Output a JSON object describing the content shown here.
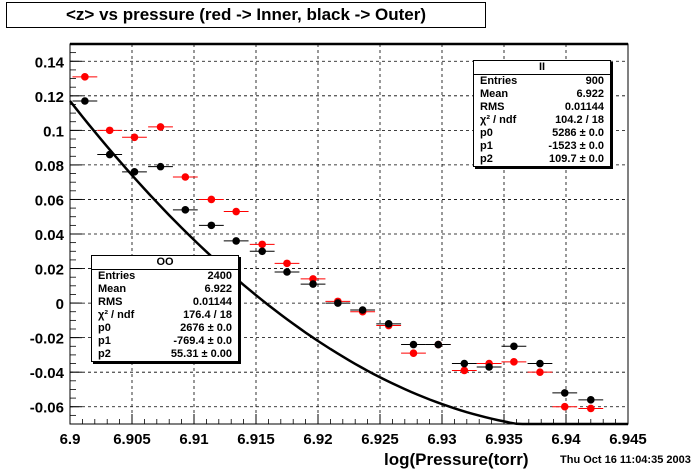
{
  "title": "<z> vs pressure (red -> Inner, black -> Outer)",
  "xlabel": "log(Pressure(torr)",
  "timestamp": "Thu Oct 16 11:04:35 2003",
  "stats_inner": {
    "header": "II",
    "rows": [
      {
        "label": "Entries",
        "value": "900"
      },
      {
        "label": "Mean",
        "value": "6.922"
      },
      {
        "label": "RMS",
        "value": "0.01144"
      },
      {
        "label": "χ² / ndf",
        "value": "104.2 / 18"
      },
      {
        "label": "p0",
        "value": "5286 ± 0.0"
      },
      {
        "label": "p1",
        "value": "-1523 ± 0.0"
      },
      {
        "label": "p2",
        "value": "109.7 ± 0.0"
      }
    ]
  },
  "stats_outer": {
    "header": "OO",
    "rows": [
      {
        "label": "Entries",
        "value": "2400"
      },
      {
        "label": "Mean",
        "value": "6.922"
      },
      {
        "label": "RMS",
        "value": "0.01144"
      },
      {
        "label": "χ² / ndf",
        "value": "176.4 / 18"
      },
      {
        "label": "p0",
        "value": "2676 ± 0.0"
      },
      {
        "label": "p1",
        "value": "-769.4 ± 0.0"
      },
      {
        "label": "p2",
        "value": "55.31 ± 0.00"
      }
    ]
  },
  "chart_data": {
    "type": "scatter",
    "title": "<z> vs pressure (red -> Inner, black -> Outer)",
    "xlabel": "log(Pressure(torr)",
    "ylabel": "",
    "xlim": [
      6.9,
      6.945
    ],
    "ylim": [
      -0.07,
      0.15
    ],
    "xticks": [
      6.9,
      6.905,
      6.91,
      6.915,
      6.92,
      6.925,
      6.93,
      6.935,
      6.94,
      6.945
    ],
    "xtick_labels": [
      "6.9",
      "6.905",
      "6.91",
      "6.915",
      "6.92",
      "6.925",
      "6.93",
      "6.935",
      "6.94",
      "6.945"
    ],
    "yticks": [
      0.14,
      0.12,
      0.1,
      0.08,
      0.06,
      0.04,
      0.02,
      0,
      -0.02,
      -0.04,
      -0.06
    ],
    "ytick_labels": [
      "0.14",
      "0.12",
      "0.1",
      "0.08",
      "0.06",
      "0.04",
      "0.02",
      "0",
      "-0.02",
      "-0.04",
      "-0.06"
    ],
    "grid": true,
    "xerr": 0.001,
    "series": [
      {
        "color": "#ff0000",
        "points": [
          [
            6.9012,
            0.131
          ],
          [
            6.9032,
            0.1
          ],
          [
            6.9052,
            0.096
          ],
          [
            6.9073,
            0.102
          ],
          [
            6.9093,
            0.073
          ],
          [
            6.9114,
            0.06
          ],
          [
            6.9134,
            0.053
          ],
          [
            6.9155,
            0.034
          ],
          [
            6.9175,
            0.023
          ],
          [
            6.9196,
            0.014
          ],
          [
            6.9216,
            0.001
          ],
          [
            6.9236,
            -0.005
          ],
          [
            6.9257,
            -0.013
          ],
          [
            6.9277,
            -0.029
          ],
          [
            6.9297,
            -0.024
          ],
          [
            6.9318,
            -0.039
          ],
          [
            6.9338,
            -0.035
          ],
          [
            6.9358,
            -0.034
          ],
          [
            6.9379,
            -0.04
          ],
          [
            6.9399,
            -0.06
          ],
          [
            6.942,
            -0.061
          ]
        ]
      },
      {
        "color": "#000000",
        "points": [
          [
            6.9012,
            0.117
          ],
          [
            6.9032,
            0.086
          ],
          [
            6.9052,
            0.076
          ],
          [
            6.9073,
            0.079
          ],
          [
            6.9093,
            0.054
          ],
          [
            6.9114,
            0.045
          ],
          [
            6.9134,
            0.036
          ],
          [
            6.9155,
            0.03
          ],
          [
            6.9175,
            0.018
          ],
          [
            6.9196,
            0.011
          ],
          [
            6.9216,
            0.0
          ],
          [
            6.9236,
            -0.004
          ],
          [
            6.9257,
            -0.012
          ],
          [
            6.9277,
            -0.024
          ],
          [
            6.9297,
            -0.024
          ],
          [
            6.9318,
            -0.035
          ],
          [
            6.9338,
            -0.037
          ],
          [
            6.9358,
            -0.025
          ],
          [
            6.9379,
            -0.035
          ],
          [
            6.9399,
            -0.052
          ],
          [
            6.942,
            -0.056
          ]
        ]
      }
    ],
    "fits": [
      {
        "color": "#000000",
        "p0": 5286,
        "p1": -1523,
        "p2": 109.7,
        "x0": 6.9,
        "x1": 6.945
      },
      {
        "color": "#000000",
        "p0": 2676,
        "p1": -769.4,
        "p2": 55.31,
        "x0": 6.9,
        "x1": 6.945
      }
    ]
  }
}
